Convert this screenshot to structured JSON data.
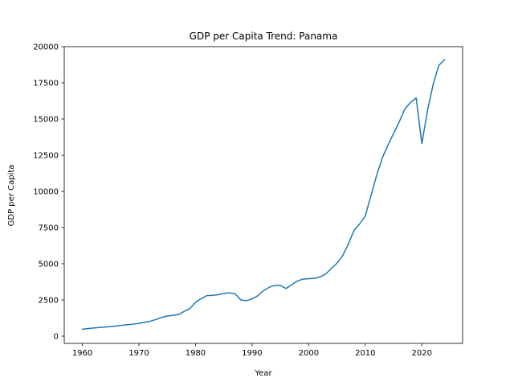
{
  "chart_data": {
    "type": "line",
    "title": "GDP per Capita Trend: Panama",
    "xlabel": "Year",
    "ylabel": "GDP per Capita",
    "xlim": [
      1956.8,
      2027.2
    ],
    "ylim": [
      -500,
      20000
    ],
    "xticks": [
      1960,
      1970,
      1980,
      1990,
      2000,
      2010,
      2020
    ],
    "yticks": [
      0,
      2500,
      5000,
      7500,
      10000,
      12500,
      15000,
      17500,
      20000
    ],
    "grid": false,
    "line_color": "#1f77b4",
    "series": [
      {
        "x": [
          1960,
          1961,
          1962,
          1963,
          1964,
          1965,
          1966,
          1967,
          1968,
          1969,
          1970,
          1971,
          1972,
          1973,
          1974,
          1975,
          1976,
          1977,
          1978,
          1979,
          1980,
          1981,
          1982,
          1983,
          1984,
          1985,
          1986,
          1987,
          1988,
          1989,
          1990,
          1991,
          1992,
          1993,
          1994,
          1995,
          1996,
          1997,
          1998,
          1999,
          2000,
          2001,
          2002,
          2003,
          2004,
          2005,
          2006,
          2007,
          2008,
          2009,
          2010,
          2011,
          2012,
          2013,
          2014,
          2015,
          2016,
          2017,
          2018,
          2019,
          2020,
          2021,
          2022,
          2023,
          2024
        ],
        "values": [
          480,
          520,
          560,
          600,
          630,
          660,
          700,
          750,
          790,
          830,
          880,
          960,
          1030,
          1150,
          1290,
          1390,
          1440,
          1490,
          1710,
          1900,
          2340,
          2590,
          2800,
          2820,
          2860,
          2950,
          2990,
          2930,
          2500,
          2450,
          2580,
          2780,
          3140,
          3370,
          3510,
          3500,
          3290,
          3550,
          3810,
          3940,
          3970,
          3990,
          4090,
          4290,
          4680,
          5040,
          5550,
          6350,
          7300,
          7750,
          8300,
          9700,
          11100,
          12300,
          13200,
          14000,
          14800,
          15700,
          16150,
          16450,
          13300,
          15600,
          17400,
          18700,
          19100
        ]
      }
    ]
  }
}
